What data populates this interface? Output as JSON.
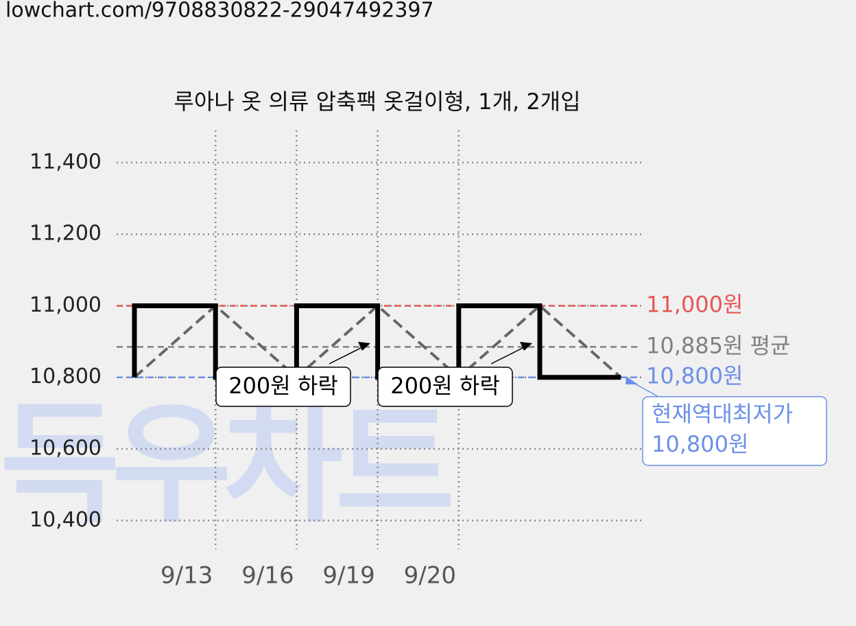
{
  "source": "lowchart.com/9708830822-29047492397",
  "chart_data": {
    "type": "step-line",
    "title": "루아나 옷 의류 압축팩 옷걸이형, 1개, 2개입",
    "categories": [
      null,
      "9/13",
      "9/16",
      "9/19",
      "9/20",
      null,
      null
    ],
    "series": [
      {
        "color": "#000000",
        "values": [
          10800,
          11000,
          10800,
          11000,
          10800,
          11000,
          10800
        ]
      }
    ],
    "ylim": [
      10320,
      11490
    ],
    "yticks": [
      {
        "value": 10400,
        "label": "10,400"
      },
      {
        "value": 10600,
        "label": "10,600"
      },
      {
        "value": 10800,
        "label": "10,800"
      },
      {
        "value": 11000,
        "label": "11,000"
      },
      {
        "value": 11200,
        "label": "11,200"
      },
      {
        "value": 11400,
        "label": "11,400"
      }
    ],
    "grid": true,
    "ref_lines": [
      {
        "value": 11000,
        "label": "11,000원",
        "color": "#e85555"
      },
      {
        "value": 10885,
        "label": "10,885원 평균",
        "color": "#808080"
      },
      {
        "value": 10800,
        "label": "10,800원",
        "color": "#6b8fe8"
      }
    ],
    "annotations": [
      {
        "label": "200원 하락"
      },
      {
        "label": "200원 하락"
      }
    ],
    "callout": [
      "현재역대최저가",
      "10,800원"
    ],
    "watermark": "득우차트"
  }
}
